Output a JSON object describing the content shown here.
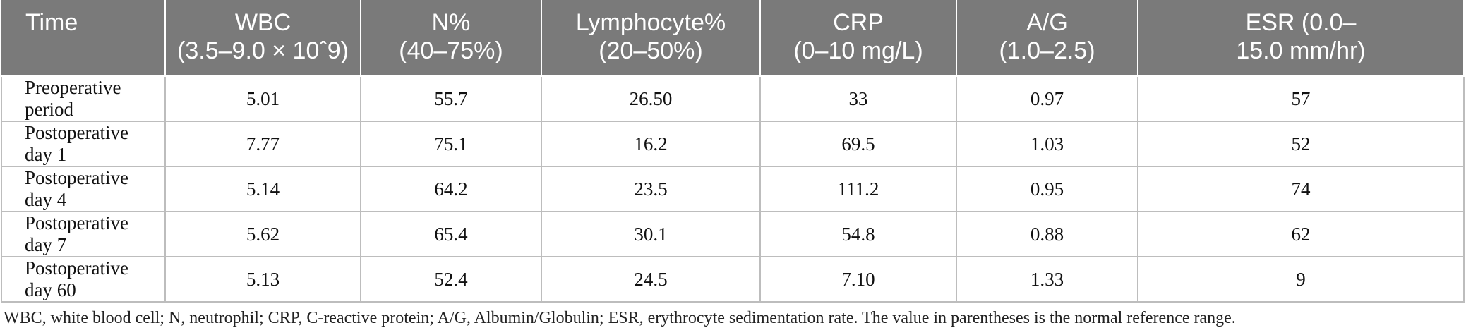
{
  "table": {
    "headers": [
      {
        "line1": "Time",
        "line2": ""
      },
      {
        "line1": "WBC",
        "line2": "(3.5–9.0 × 10ˆ9)"
      },
      {
        "line1": "N%",
        "line2": "(40–75%)"
      },
      {
        "line1": "Lymphocyte%",
        "line2": "(20–50%)"
      },
      {
        "line1": "CRP",
        "line2": "(0–10 mg/L)"
      },
      {
        "line1": "A/G",
        "line2": "(1.0–2.5)"
      },
      {
        "line1": "ESR (0.0–",
        "line2": "15.0 mm/hr)"
      }
    ],
    "rows": [
      [
        "Preoperative period",
        "5.01",
        "55.7",
        "26.50",
        "33",
        "0.97",
        "57"
      ],
      [
        "Postoperative day 1",
        "7.77",
        "75.1",
        "16.2",
        "69.5",
        "1.03",
        "52"
      ],
      [
        "Postoperative day 4",
        "5.14",
        "64.2",
        "23.5",
        "111.2",
        "0.95",
        "74"
      ],
      [
        "Postoperative day 7",
        "5.62",
        "65.4",
        "30.1",
        "54.8",
        "0.88",
        "62"
      ],
      [
        "Postoperative day 60",
        "5.13",
        "52.4",
        "24.5",
        "7.10",
        "1.33",
        "9"
      ]
    ]
  },
  "footnote": "WBC, white blood cell; N, neutrophil; CRP, C-reactive protein; A/G, Albumin/Globulin; ESR, erythrocyte sedimentation rate. The value in parentheses is the normal reference range.",
  "colors": {
    "header_bg": "#7a7a7a",
    "header_text": "#ffffff",
    "grid": "#bdbdbd"
  }
}
